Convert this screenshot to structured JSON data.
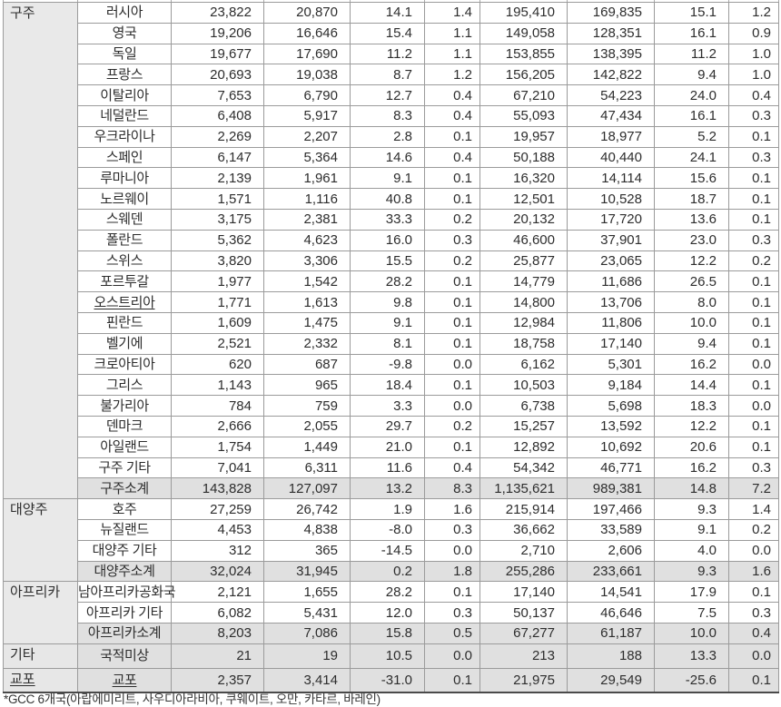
{
  "footnote": "*GCC 6개국(아랍에미리트, 사우디아라비아, 쿠웨이트, 오만, 카타르, 바레인)",
  "table": {
    "rows": [
      {
        "region": "구주",
        "span": 24,
        "name": "러시아",
        "v": [
          "23,822",
          "20,870",
          "14.1",
          "1.4",
          "195,410",
          "169,835",
          "15.1",
          "1.2"
        ]
      },
      {
        "name": "영국",
        "v": [
          "19,206",
          "16,646",
          "15.4",
          "1.1",
          "149,058",
          "128,351",
          "16.1",
          "0.9"
        ]
      },
      {
        "name": "독일",
        "v": [
          "19,677",
          "17,690",
          "11.2",
          "1.1",
          "153,855",
          "138,395",
          "11.2",
          "1.0"
        ]
      },
      {
        "name": "프랑스",
        "v": [
          "20,693",
          "19,038",
          "8.7",
          "1.2",
          "156,205",
          "142,822",
          "9.4",
          "1.0"
        ]
      },
      {
        "name": "이탈리아",
        "v": [
          "7,653",
          "6,790",
          "12.7",
          "0.4",
          "67,210",
          "54,223",
          "24.0",
          "0.4"
        ]
      },
      {
        "name": "네덜란드",
        "v": [
          "6,408",
          "5,917",
          "8.3",
          "0.4",
          "55,093",
          "47,434",
          "16.1",
          "0.3"
        ]
      },
      {
        "name": "우크라이나",
        "v": [
          "2,269",
          "2,207",
          "2.8",
          "0.1",
          "19,957",
          "18,977",
          "5.2",
          "0.1"
        ]
      },
      {
        "name": "스페인",
        "v": [
          "6,147",
          "5,364",
          "14.6",
          "0.4",
          "50,188",
          "40,440",
          "24.1",
          "0.3"
        ]
      },
      {
        "name": "루마니아",
        "v": [
          "2,139",
          "1,961",
          "9.1",
          "0.1",
          "16,320",
          "14,114",
          "15.6",
          "0.1"
        ]
      },
      {
        "name": "노르웨이",
        "v": [
          "1,571",
          "1,116",
          "40.8",
          "0.1",
          "12,501",
          "10,528",
          "18.7",
          "0.1"
        ]
      },
      {
        "name": "스웨덴",
        "v": [
          "3,175",
          "2,381",
          "33.3",
          "0.2",
          "20,132",
          "17,720",
          "13.6",
          "0.1"
        ]
      },
      {
        "name": "폴란드",
        "v": [
          "5,362",
          "4,623",
          "16.0",
          "0.3",
          "46,600",
          "37,901",
          "23.0",
          "0.3"
        ]
      },
      {
        "name": "스위스",
        "v": [
          "3,820",
          "3,306",
          "15.5",
          "0.2",
          "25,877",
          "23,065",
          "12.2",
          "0.2"
        ]
      },
      {
        "name": "포르투갈",
        "v": [
          "1,977",
          "1,542",
          "28.2",
          "0.1",
          "14,779",
          "11,686",
          "26.5",
          "0.1"
        ]
      },
      {
        "name": "오스트리아",
        "u": true,
        "v": [
          "1,771",
          "1,613",
          "9.8",
          "0.1",
          "14,800",
          "13,706",
          "8.0",
          "0.1"
        ]
      },
      {
        "name": "핀란드",
        "v": [
          "1,609",
          "1,475",
          "9.1",
          "0.1",
          "12,984",
          "11,806",
          "10.0",
          "0.1"
        ]
      },
      {
        "name": "벨기에",
        "v": [
          "2,521",
          "2,332",
          "8.1",
          "0.1",
          "18,758",
          "17,140",
          "9.4",
          "0.1"
        ]
      },
      {
        "name": "크로아티아",
        "v": [
          "620",
          "687",
          "-9.8",
          "0.0",
          "6,162",
          "5,301",
          "16.2",
          "0.0"
        ]
      },
      {
        "name": "그리스",
        "v": [
          "1,143",
          "965",
          "18.4",
          "0.1",
          "10,503",
          "9,184",
          "14.4",
          "0.1"
        ]
      },
      {
        "name": "불가리아",
        "v": [
          "784",
          "759",
          "3.3",
          "0.0",
          "6,738",
          "5,698",
          "18.3",
          "0.0"
        ]
      },
      {
        "name": "덴마크",
        "v": [
          "2,666",
          "2,055",
          "29.7",
          "0.2",
          "15,257",
          "13,592",
          "12.2",
          "0.1"
        ]
      },
      {
        "name": "아일랜드",
        "v": [
          "1,754",
          "1,449",
          "21.0",
          "0.1",
          "12,892",
          "10,692",
          "20.6",
          "0.1"
        ]
      },
      {
        "name": "구주 기타",
        "v": [
          "7,041",
          "6,311",
          "11.6",
          "0.4",
          "54,342",
          "46,771",
          "16.2",
          "0.3"
        ]
      },
      {
        "name": "구주소계",
        "shaded": true,
        "v": [
          "143,828",
          "127,097",
          "13.2",
          "8.3",
          "1,135,621",
          "989,381",
          "14.8",
          "7.2"
        ]
      },
      {
        "region": "대양주",
        "span": 4,
        "name": "호주",
        "v": [
          "27,259",
          "26,742",
          "1.9",
          "1.6",
          "215,914",
          "197,466",
          "9.3",
          "1.4"
        ]
      },
      {
        "name": "뉴질랜드",
        "v": [
          "4,453",
          "4,838",
          "-8.0",
          "0.3",
          "36,662",
          "33,589",
          "9.1",
          "0.2"
        ]
      },
      {
        "name": "대양주 기타",
        "v": [
          "312",
          "365",
          "-14.5",
          "0.0",
          "2,710",
          "2,606",
          "4.0",
          "0.0"
        ]
      },
      {
        "name": "대양주소계",
        "shaded": true,
        "v": [
          "32,024",
          "31,945",
          "0.2",
          "1.8",
          "255,286",
          "233,661",
          "9.3",
          "1.6"
        ]
      },
      {
        "region": "아프리카",
        "span": 3,
        "name": "남아프리카공화국",
        "v": [
          "2,121",
          "1,655",
          "28.2",
          "0.1",
          "17,140",
          "14,541",
          "17.9",
          "0.1"
        ]
      },
      {
        "name": "아프리카 기타",
        "v": [
          "6,082",
          "5,431",
          "12.0",
          "0.3",
          "50,137",
          "46,646",
          "7.5",
          "0.3"
        ]
      },
      {
        "name": "아프리카소계",
        "shaded": true,
        "v": [
          "8,203",
          "7,086",
          "15.8",
          "0.5",
          "67,277",
          "61,187",
          "10.0",
          "0.4"
        ]
      },
      {
        "region": "기타",
        "span": 1,
        "name": "국적미상",
        "shaded": true,
        "v": [
          "21",
          "19",
          "10.5",
          "0.0",
          "213",
          "188",
          "13.3",
          "0.0"
        ]
      },
      {
        "region": "교포",
        "span": 1,
        "ru": true,
        "name": "교포",
        "u": true,
        "shaded": true,
        "v": [
          "2,357",
          "3,414",
          "-31.0",
          "0.1",
          "21,975",
          "29,549",
          "-25.6",
          "0.1"
        ]
      }
    ]
  }
}
